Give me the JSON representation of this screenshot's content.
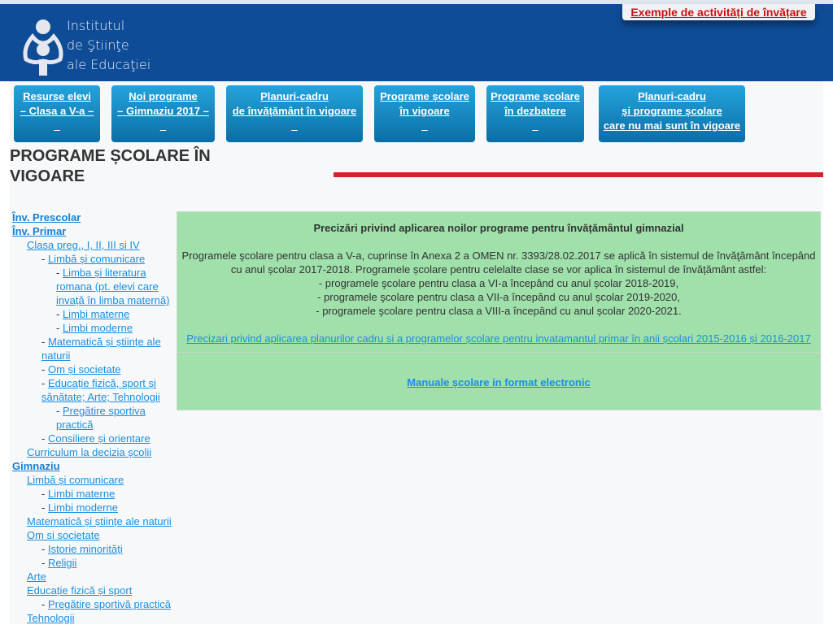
{
  "header": {
    "logo_lines": [
      "Institutul",
      "de Ştiinţe",
      "ale Educaţiei"
    ],
    "exemple_link": "Exemple de activități de învățare",
    "colors": {
      "header": "#0e4c97",
      "link_red": "#cc1010"
    }
  },
  "nav": [
    {
      "lines": [
        "Resurse elevi",
        "– Clasa a V-a –",
        "_"
      ]
    },
    {
      "lines": [
        "Noi programe",
        "– Gimnaziu 2017 –",
        "_"
      ]
    },
    {
      "lines": [
        "Planuri-cadru",
        "de învățământ în vigoare",
        "_"
      ]
    },
    {
      "lines": [
        "Programe școlare",
        "în vigoare",
        "_"
      ]
    },
    {
      "lines": [
        "Programe școlare",
        "în dezbatere",
        "_"
      ]
    },
    {
      "lines": [
        "Planuri-cadru",
        "și programe școlare",
        "care nu mai sunt în vigoare"
      ]
    }
  ],
  "page_title": "PROGRAME ȘCOLARE ÎN VIGOARE",
  "sidebar": [
    {
      "level": 0,
      "bold": true,
      "text": "Înv. Prescolar"
    },
    {
      "level": 0,
      "bold": true,
      "text": "Înv. Primar"
    },
    {
      "level": 1,
      "text": "Clasa preg., I, II, III si IV"
    },
    {
      "level": 2,
      "dash": true,
      "text": "Limbă și comunicare"
    },
    {
      "level": 3,
      "dash": true,
      "text": "Limba și literatura romana (pt. elevi care invață în limba maternă)"
    },
    {
      "level": 3,
      "dash": true,
      "text": "Limbi materne"
    },
    {
      "level": 3,
      "dash": true,
      "text": "Limbi moderne"
    },
    {
      "level": 2,
      "dash": true,
      "text": "Matematică și științe ale naturii"
    },
    {
      "level": 2,
      "dash": true,
      "text": "Om și societate"
    },
    {
      "level": 2,
      "dash": true,
      "text": "Educație fizică, sport și sănătate; Arte; Tehnologii"
    },
    {
      "level": 3,
      "dash": true,
      "text": "Pregătire sportiva practică"
    },
    {
      "level": 2,
      "dash": true,
      "text": "Consiliere și orientare"
    },
    {
      "level": 1,
      "text": "Curriculum la decizia școlii"
    },
    {
      "level": 0,
      "bold": true,
      "text": "Gimnaziu"
    },
    {
      "level": 1,
      "text": "Limbă și comunicare"
    },
    {
      "level": 2,
      "dash": true,
      "text": "Limbi materne"
    },
    {
      "level": 2,
      "dash": true,
      "text": "Limbi moderne"
    },
    {
      "level": 1,
      "text": "Matematică și științe ale naturii"
    },
    {
      "level": 1,
      "text": "Om si societate"
    },
    {
      "level": 2,
      "dash": true,
      "text": "Istorie minorități"
    },
    {
      "level": 2,
      "dash": true,
      "text": "Religii"
    },
    {
      "level": 1,
      "text": "Arte"
    },
    {
      "level": 1,
      "text": "Educație fizică și sport"
    },
    {
      "level": 2,
      "dash": true,
      "text": "Pregătire sportivă practică"
    },
    {
      "level": 1,
      "text": "Tehnologii"
    }
  ],
  "content": {
    "title": "Precizări privind aplicarea noilor programe pentru învățământul gimnazial",
    "paragraph": [
      "Programele şcolare pentru clasa a V-a, cuprinse în Anexa 2 a OMEN nr. 3393/28.02.2017 se aplică în sistemul de învăţământ începând cu anul școlar 2017-2018. Programele școlare pentru celelalte clase se vor aplica în sistemul de învățământ astfel:",
      "- programele şcolare pentru clasa a VI-a începând cu anul școlar 2018-2019,",
      "- programele şcolare pentru clasa a VII-a începând cu anul școlar 2019-2020,",
      "- programele şcolare pentru clasa a VIII-a începând cu anul școlar 2020-2021."
    ],
    "link1": "Precizari privind aplicarea planurilor cadru si a programelor școlare pentru invatamantul primar în anii școlari 2015-2016 și 2016-2017",
    "link2": "Manuale școlare in format electronic"
  }
}
